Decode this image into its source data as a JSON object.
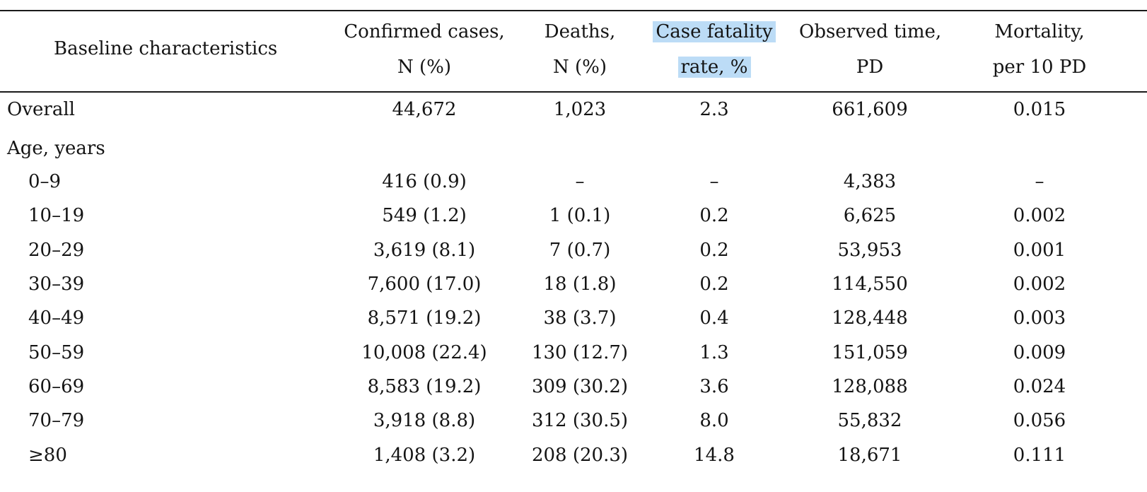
{
  "headers": {
    "baseline": "Baseline characteristics",
    "confirmed": [
      "Confirmed cases,",
      "N (%)"
    ],
    "deaths": [
      "Deaths,",
      "N (%)"
    ],
    "cfr": [
      "Case fatality",
      "rate, %"
    ],
    "observed": [
      "Observed time,",
      "PD"
    ],
    "mortality": [
      "Mortality,",
      "per 10 PD"
    ]
  },
  "overall": {
    "label": "Overall",
    "confirmed": "44,672",
    "deaths": "1,023",
    "cfr": "2.3",
    "observed": "661,609",
    "mortality": "0.015"
  },
  "age_section": "Age, years",
  "rows": [
    {
      "label": "0–9",
      "confirmed": "416 (0.9)",
      "deaths": "–",
      "cfr": "–",
      "observed": "4,383",
      "mortality": "–"
    },
    {
      "label": "10–19",
      "confirmed": "549 (1.2)",
      "deaths": "1 (0.1)",
      "cfr": "0.2",
      "observed": "6,625",
      "mortality": "0.002"
    },
    {
      "label": "20–29",
      "confirmed": "3,619 (8.1)",
      "deaths": "7 (0.7)",
      "cfr": "0.2",
      "observed": "53,953",
      "mortality": "0.001"
    },
    {
      "label": "30–39",
      "confirmed": "7,600 (17.0)",
      "deaths": "18 (1.8)",
      "cfr": "0.2",
      "observed": "114,550",
      "mortality": "0.002"
    },
    {
      "label": "40–49",
      "confirmed": "8,571 (19.2)",
      "deaths": "38 (3.7)",
      "cfr": "0.4",
      "observed": "128,448",
      "mortality": "0.003"
    },
    {
      "label": "50–59",
      "confirmed": "10,008 (22.4)",
      "deaths": "130 (12.7)",
      "cfr": "1.3",
      "observed": "151,059",
      "mortality": "0.009"
    },
    {
      "label": "60–69",
      "confirmed": "8,583 (19.2)",
      "deaths": "309 (30.2)",
      "cfr": "3.6",
      "observed": "128,088",
      "mortality": "0.024"
    },
    {
      "label": "70–79",
      "confirmed": "3,918 (8.8)",
      "deaths": "312 (30.5)",
      "cfr": "8.0",
      "observed": "55,832",
      "mortality": "0.056"
    },
    {
      "label": "≥80",
      "confirmed": "1,408 (3.2)",
      "deaths": "208 (20.3)",
      "cfr": "14.8",
      "observed": "18,671",
      "mortality": "0.111"
    }
  ],
  "colors": {
    "highlight": "#bcdcf6",
    "rule": "#1a1a1a",
    "text": "#141414"
  }
}
